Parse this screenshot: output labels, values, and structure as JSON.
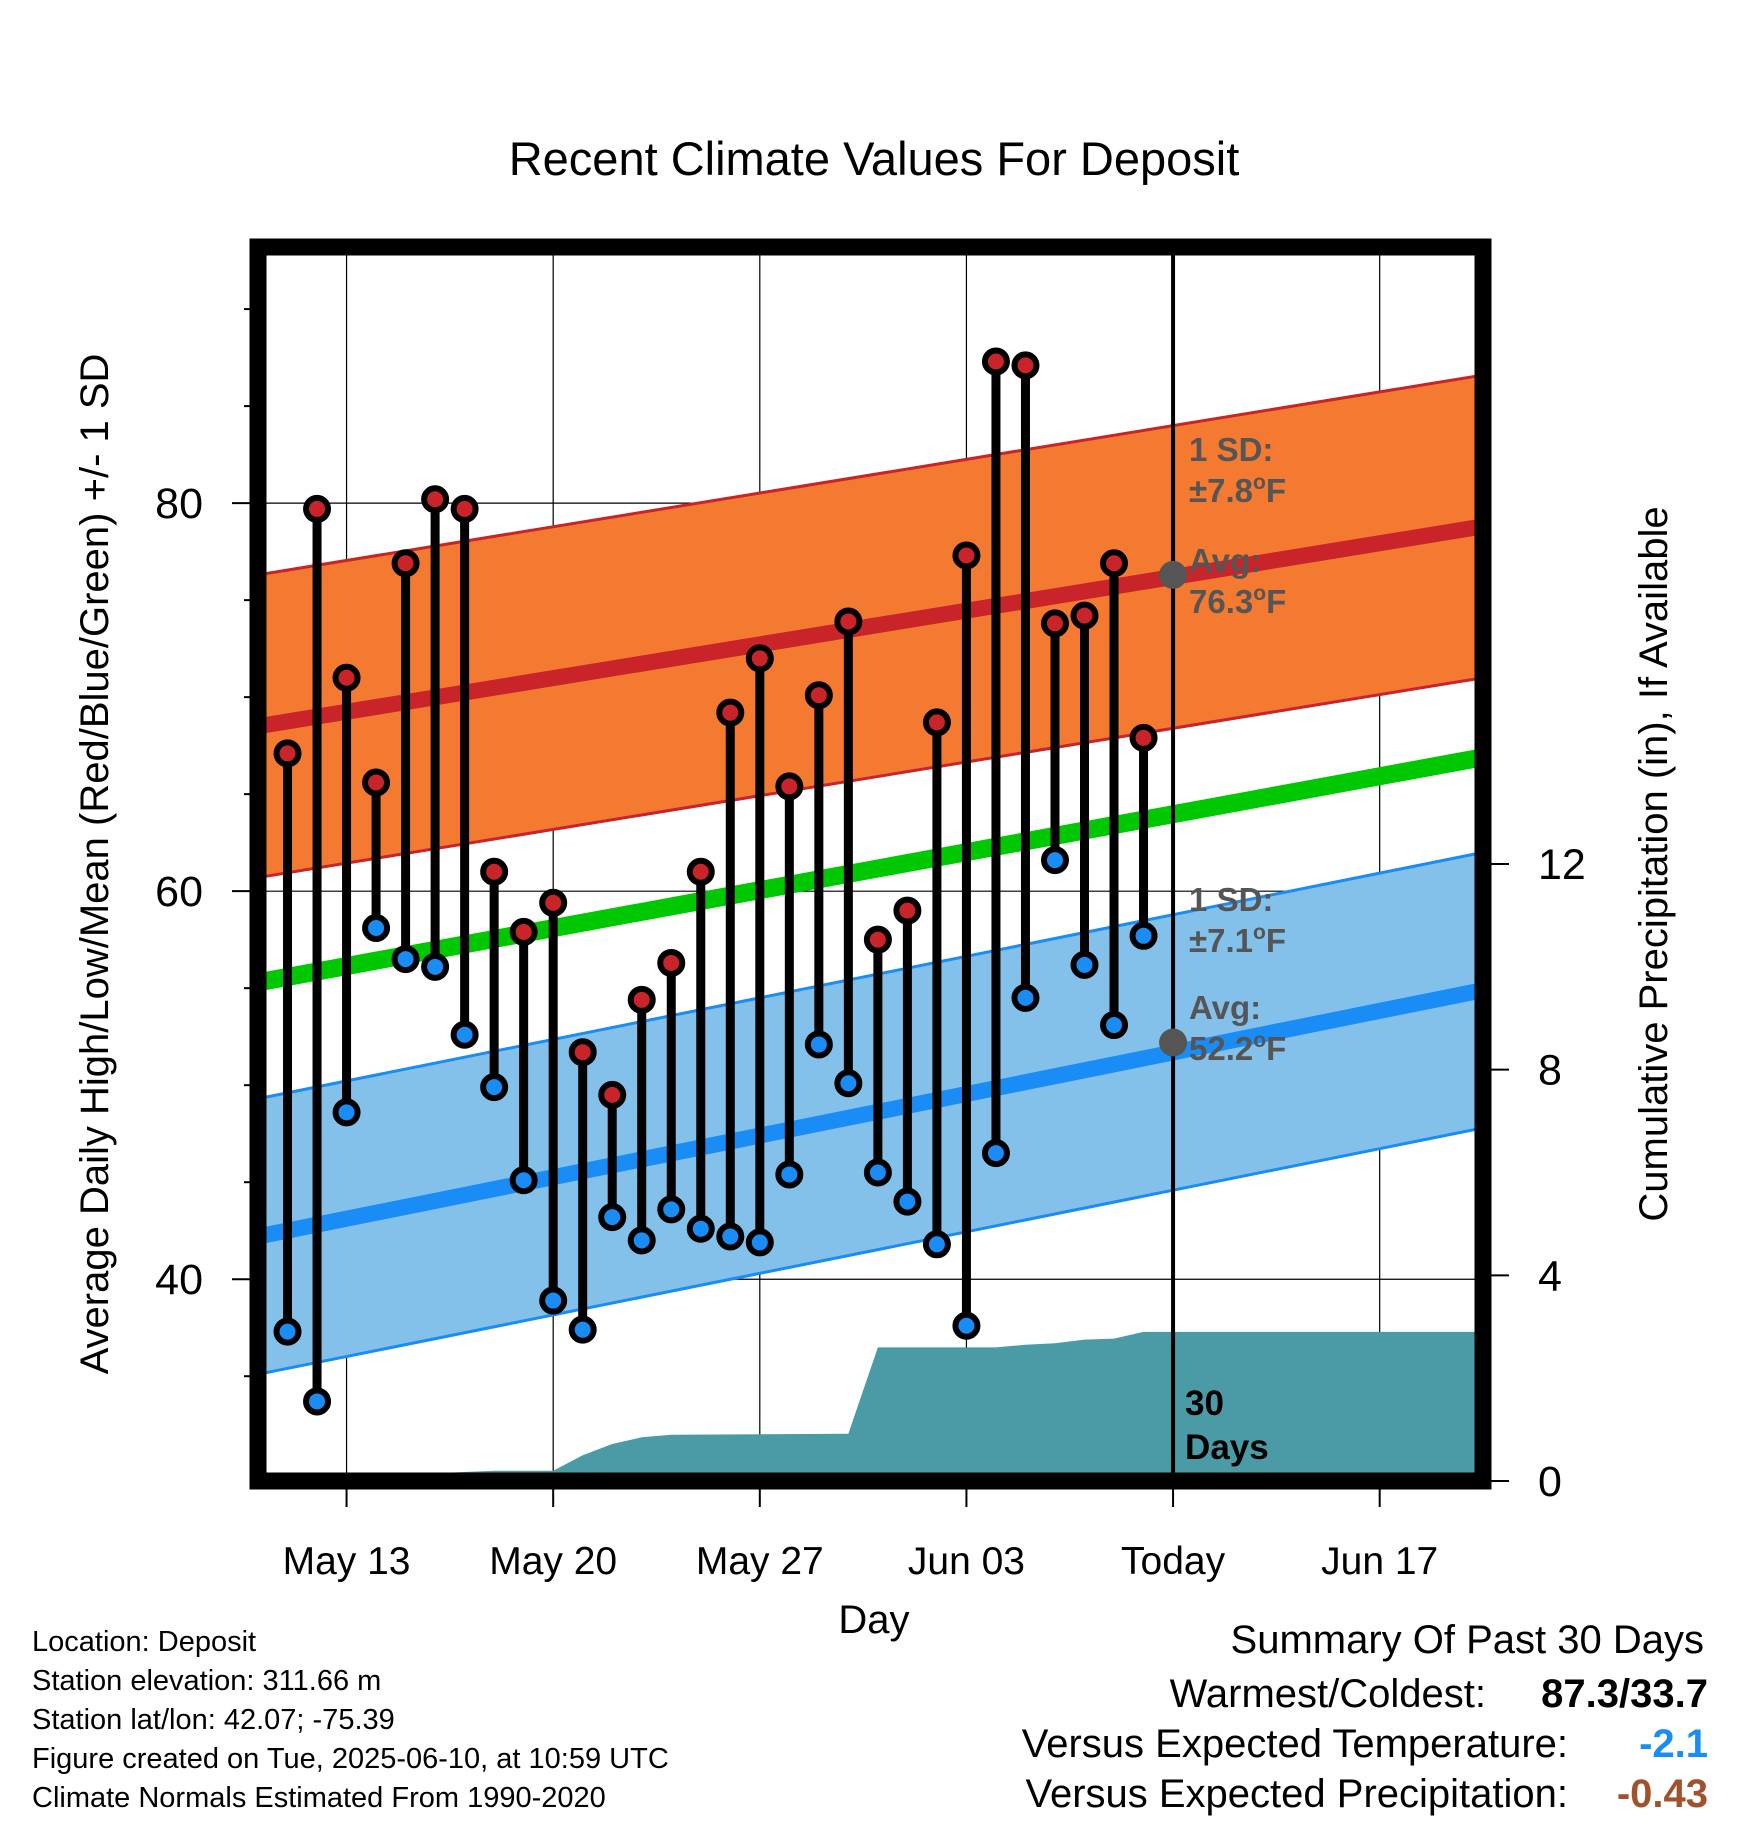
{
  "chart_data": {
    "type": "line",
    "title": "Recent Climate Values For Deposit",
    "xlabel": "Day",
    "ylabel_left": "Average Daily High/Low/Mean (Red/Blue/Green) +/- 1 SD",
    "ylabel_right": "Cumulative Precipitation (in), If Available",
    "ylim_left": [
      29.6,
      93.2
    ],
    "ylim_right": [
      0,
      24
    ],
    "xlim_days": [
      0,
      41.5
    ],
    "x_ticks": [
      {
        "day": 3,
        "label": "May 13"
      },
      {
        "day": 10,
        "label": "May 20"
      },
      {
        "day": 17,
        "label": "May 27"
      },
      {
        "day": 24,
        "label": "Jun 03"
      },
      {
        "day": 31,
        "label": "Today"
      },
      {
        "day": 38,
        "label": "Jun 17"
      }
    ],
    "y_ticks_left": [
      40,
      60,
      80
    ],
    "y_ticks_right": [
      0,
      4,
      8,
      12
    ],
    "grid": true,
    "x_dates": [
      "2025-05-11",
      "2025-05-12",
      "2025-05-13",
      "2025-05-14",
      "2025-05-15",
      "2025-05-16",
      "2025-05-17",
      "2025-05-18",
      "2025-05-19",
      "2025-05-20",
      "2025-05-21",
      "2025-05-22",
      "2025-05-23",
      "2025-05-24",
      "2025-05-25",
      "2025-05-26",
      "2025-05-27",
      "2025-05-28",
      "2025-05-29",
      "2025-05-30",
      "2025-05-31",
      "2025-06-01",
      "2025-06-02",
      "2025-06-03",
      "2025-06-04",
      "2025-06-05",
      "2025-06-06",
      "2025-06-07",
      "2025-06-08",
      "2025-06-09"
    ],
    "daily_high": [
      67.1,
      79.7,
      71.0,
      65.6,
      76.9,
      80.2,
      79.7,
      61.0,
      57.9,
      59.4,
      51.7,
      49.5,
      54.4,
      56.3,
      61.0,
      69.2,
      72.0,
      65.4,
      70.1,
      73.9,
      57.5,
      59.0,
      68.7,
      77.3,
      87.3,
      87.1,
      73.8,
      74.2,
      76.9,
      67.9
    ],
    "daily_low": [
      37.3,
      33.7,
      48.6,
      58.1,
      56.5,
      56.1,
      52.6,
      49.9,
      45.1,
      38.9,
      37.4,
      43.2,
      42.0,
      43.6,
      42.6,
      42.2,
      41.9,
      45.4,
      52.1,
      50.1,
      45.5,
      44.0,
      41.8,
      37.6,
      46.5,
      54.5,
      61.6,
      56.2,
      53.1,
      57.7
    ],
    "normals": {
      "high_avg": {
        "start": 68.5,
        "end": 78.8
      },
      "high_sd": 7.8,
      "low_avg": {
        "start": 42.2,
        "end": 54.9
      },
      "low_sd": 7.1,
      "mean_avg": {
        "start": 55.3,
        "end": 66.9
      }
    },
    "cumulative_precip": {
      "days": [
        0,
        3,
        4,
        5,
        6,
        8,
        9,
        10,
        11,
        12,
        13,
        14,
        20,
        21,
        22,
        23,
        24,
        25,
        26,
        27,
        28,
        29,
        30,
        31,
        41.5
      ],
      "values": [
        0,
        0,
        0.03,
        0.03,
        0.15,
        0.2,
        0.2,
        0.2,
        0.5,
        0.72,
        0.85,
        0.9,
        0.92,
        2.6,
        2.6,
        2.6,
        2.6,
        2.6,
        2.65,
        2.68,
        2.75,
        2.77,
        2.9,
        2.9,
        2.9
      ]
    },
    "annotations": {
      "high_sd_label_1": "1 SD:",
      "high_sd_label_2": "±7.8",
      "high_avg_label_1": "Avg:",
      "high_avg_label_2": "76.3",
      "low_sd_label_1": "1 SD:",
      "low_sd_label_2": "±7.1",
      "low_avg_label_1": "Avg:",
      "low_avg_label_2": "52.2",
      "deg_unit": "o",
      "f_unit": "F",
      "days_label_1": "30",
      "days_label_2": "Days"
    },
    "high_today": 76.3,
    "low_today": 52.2
  },
  "colors": {
    "high": "#c8242a",
    "high_band": "#f37a30",
    "low": "#1a8cf5",
    "low_band": "#84c1ea",
    "mean": "#00c800",
    "precip": "#4a9ba6",
    "annotation": "#555555",
    "warm_value": "#1a8cf5",
    "precip_value": "#a0522d"
  },
  "footer": {
    "location": "Location: Deposit",
    "elevation": "Station elevation: 311.66 m",
    "latlon": "Station lat/lon: 42.07; -75.39",
    "created": "Figure created on Tue, 2025-06-10, at 10:59 UTC",
    "normals": "Climate Normals Estimated From 1990-2020"
  },
  "summary": {
    "title": "Summary Of Past 30 Days",
    "warm_label": "Warmest/Coldest:",
    "warm_value": "87.3/33.7",
    "temp_label": "Versus Expected Temperature:",
    "temp_value": "-2.1",
    "precip_label": "Versus Expected Precipitation:",
    "precip_value": "-0.43"
  }
}
